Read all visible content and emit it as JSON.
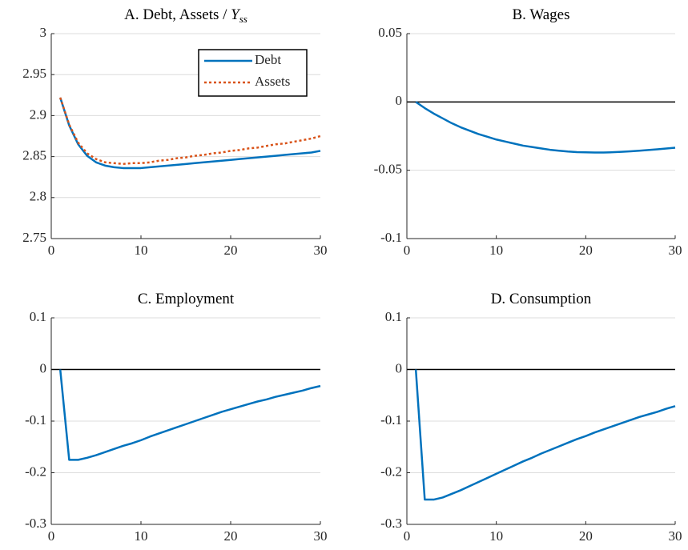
{
  "chart_data": [
    {
      "type": "line",
      "title": "A. Debt, Assets / ",
      "title_symbol": "Y",
      "title_subscript": "ss",
      "x": [
        1,
        2,
        3,
        4,
        5,
        6,
        7,
        8,
        9,
        10,
        11,
        12,
        13,
        14,
        15,
        16,
        17,
        18,
        19,
        20,
        21,
        22,
        23,
        24,
        25,
        26,
        27,
        28,
        29,
        30
      ],
      "series": [
        {
          "name": "Debt",
          "color": "#0072bd",
          "dash": "solid",
          "values": [
            2.922,
            2.888,
            2.865,
            2.851,
            2.843,
            2.839,
            2.837,
            2.836,
            2.836,
            2.836,
            2.837,
            2.838,
            2.839,
            2.84,
            2.841,
            2.842,
            2.843,
            2.844,
            2.845,
            2.846,
            2.847,
            2.848,
            2.849,
            2.85,
            2.851,
            2.852,
            2.853,
            2.854,
            2.855,
            2.857
          ]
        },
        {
          "name": "Assets",
          "color": "#d95319",
          "dash": "dotted",
          "values": [
            2.922,
            2.889,
            2.867,
            2.854,
            2.847,
            2.843,
            2.842,
            2.841,
            2.842,
            2.842,
            2.843,
            2.845,
            2.846,
            2.848,
            2.849,
            2.851,
            2.852,
            2.854,
            2.855,
            2.857,
            2.858,
            2.86,
            2.861,
            2.863,
            2.865,
            2.866,
            2.868,
            2.87,
            2.872,
            2.875
          ]
        }
      ],
      "xlim": [
        0,
        30
      ],
      "xticks": [
        0,
        10,
        20,
        30
      ],
      "ylim": [
        2.75,
        3
      ],
      "yticks": [
        2.75,
        2.8,
        2.85,
        2.9,
        2.95,
        3
      ],
      "grid": true,
      "legend": "upper right"
    },
    {
      "type": "line",
      "title": "B. Wages",
      "x": [
        1,
        2,
        3,
        4,
        5,
        6,
        7,
        8,
        9,
        10,
        11,
        12,
        13,
        14,
        15,
        16,
        17,
        18,
        19,
        20,
        21,
        22,
        23,
        24,
        25,
        26,
        27,
        28,
        29,
        30
      ],
      "series": [
        {
          "color": "#0072bd",
          "dash": "solid",
          "values": [
            0,
            -0.0045,
            -0.0085,
            -0.012,
            -0.0155,
            -0.0185,
            -0.021,
            -0.0235,
            -0.0255,
            -0.0275,
            -0.029,
            -0.0305,
            -0.032,
            -0.033,
            -0.034,
            -0.035,
            -0.0357,
            -0.0363,
            -0.0367,
            -0.0369,
            -0.037,
            -0.037,
            -0.0368,
            -0.0365,
            -0.0361,
            -0.0357,
            -0.0352,
            -0.0347,
            -0.0341,
            -0.0335
          ]
        }
      ],
      "xlim": [
        0,
        30
      ],
      "xticks": [
        0,
        10,
        20,
        30
      ],
      "ylim": [
        -0.1,
        0.05
      ],
      "yticks": [
        -0.1,
        -0.05,
        0,
        0.05
      ],
      "grid": true,
      "reference_line": 0
    },
    {
      "type": "line",
      "title": "C. Employment",
      "x": [
        1,
        2,
        3,
        4,
        5,
        6,
        7,
        8,
        9,
        10,
        11,
        12,
        13,
        14,
        15,
        16,
        17,
        18,
        19,
        20,
        21,
        22,
        23,
        24,
        25,
        26,
        27,
        28,
        29,
        30
      ],
      "series": [
        {
          "color": "#0072bd",
          "dash": "solid",
          "values": [
            0,
            -0.175,
            -0.175,
            -0.171,
            -0.166,
            -0.16,
            -0.154,
            -0.148,
            -0.143,
            -0.137,
            -0.13,
            -0.124,
            -0.118,
            -0.112,
            -0.106,
            -0.1,
            -0.094,
            -0.088,
            -0.082,
            -0.077,
            -0.072,
            -0.067,
            -0.062,
            -0.058,
            -0.053,
            -0.049,
            -0.045,
            -0.041,
            -0.036,
            -0.032
          ]
        }
      ],
      "xlim": [
        0,
        30
      ],
      "xticks": [
        0,
        10,
        20,
        30
      ],
      "ylim": [
        -0.3,
        0.1
      ],
      "yticks": [
        -0.3,
        -0.2,
        -0.1,
        0,
        0.1
      ],
      "grid": true,
      "reference_line": 0
    },
    {
      "type": "line",
      "title": "D. Consumption",
      "x": [
        1,
        2,
        3,
        4,
        5,
        6,
        7,
        8,
        9,
        10,
        11,
        12,
        13,
        14,
        15,
        16,
        17,
        18,
        19,
        20,
        21,
        22,
        23,
        24,
        25,
        26,
        27,
        28,
        29,
        30
      ],
      "series": [
        {
          "color": "#0072bd",
          "dash": "solid",
          "values": [
            0,
            -0.252,
            -0.252,
            -0.248,
            -0.241,
            -0.234,
            -0.226,
            -0.218,
            -0.21,
            -0.202,
            -0.194,
            -0.186,
            -0.178,
            -0.171,
            -0.163,
            -0.156,
            -0.149,
            -0.142,
            -0.135,
            -0.129,
            -0.122,
            -0.116,
            -0.11,
            -0.104,
            -0.098,
            -0.092,
            -0.087,
            -0.082,
            -0.076,
            -0.071
          ]
        }
      ],
      "xlim": [
        0,
        30
      ],
      "xticks": [
        0,
        10,
        20,
        30
      ],
      "ylim": [
        -0.3,
        0.1
      ],
      "yticks": [
        -0.3,
        -0.2,
        -0.1,
        0,
        0.1
      ],
      "grid": true,
      "reference_line": 0
    }
  ]
}
